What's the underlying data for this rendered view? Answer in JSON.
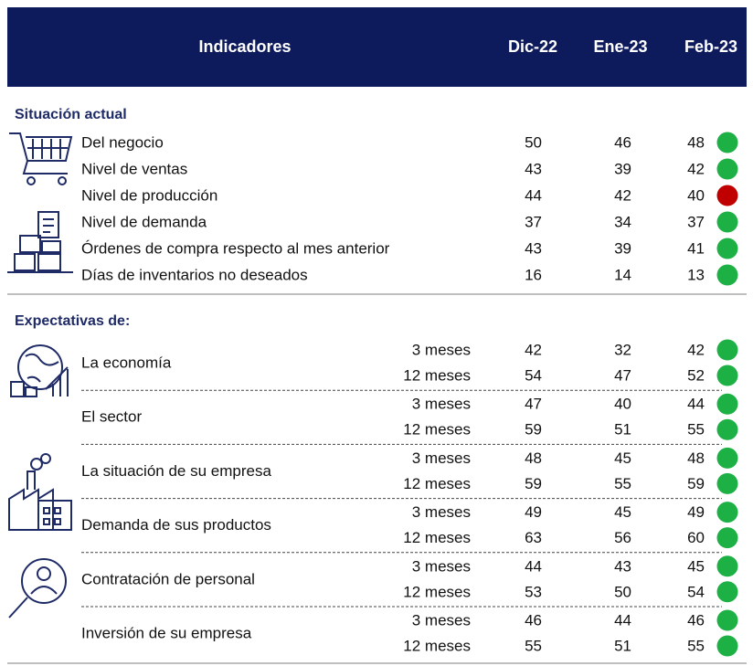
{
  "header": {
    "title": "Indicadores",
    "columns": [
      "Dic-22",
      "Ene-23",
      "Feb-23"
    ]
  },
  "current": {
    "title": "Situación actual",
    "rows": [
      {
        "label": "Del negocio",
        "values": [
          50,
          46,
          48
        ],
        "color": "#1db044"
      },
      {
        "label": "Nivel de ventas",
        "values": [
          43,
          39,
          42
        ],
        "color": "#1db044"
      },
      {
        "label": "Nivel de producción",
        "values": [
          44,
          42,
          40
        ],
        "color": "#c00000"
      },
      {
        "label": "Nivel de demanda",
        "values": [
          37,
          34,
          37
        ],
        "color": "#1db044"
      },
      {
        "label": "Órdenes de compra respecto al mes anterior",
        "values": [
          43,
          39,
          41
        ],
        "color": "#1db044"
      },
      {
        "label": "Días de inventarios no deseados",
        "values": [
          16,
          14,
          13
        ],
        "color": "#1db044"
      }
    ]
  },
  "expectations": {
    "title": "Expectativas de:",
    "groups": [
      {
        "label": "La economía",
        "rows": [
          {
            "horizon": "3 meses",
            "values": [
              42,
              32,
              42
            ],
            "color": "#1db044"
          },
          {
            "horizon": "12 meses",
            "values": [
              54,
              47,
              52
            ],
            "color": "#1db044"
          }
        ]
      },
      {
        "label": "El sector",
        "rows": [
          {
            "horizon": "3 meses",
            "values": [
              47,
              40,
              44
            ],
            "color": "#1db044"
          },
          {
            "horizon": "12 meses",
            "values": [
              59,
              51,
              55
            ],
            "color": "#1db044"
          }
        ]
      },
      {
        "label": "La situación de su empresa",
        "rows": [
          {
            "horizon": "3 meses",
            "values": [
              48,
              45,
              48
            ],
            "color": "#1db044"
          },
          {
            "horizon": "12 meses",
            "values": [
              59,
              55,
              59
            ],
            "color": "#1db044"
          }
        ]
      },
      {
        "label": "Demanda de sus productos",
        "rows": [
          {
            "horizon": "3 meses",
            "values": [
              49,
              45,
              49
            ],
            "color": "#1db044"
          },
          {
            "horizon": "12 meses",
            "values": [
              63,
              56,
              60
            ],
            "color": "#1db044"
          }
        ]
      },
      {
        "label": "Contratación de personal",
        "rows": [
          {
            "horizon": "3 meses",
            "values": [
              44,
              43,
              45
            ],
            "color": "#1db044"
          },
          {
            "horizon": "12 meses",
            "values": [
              53,
              50,
              54
            ],
            "color": "#1db044"
          }
        ]
      },
      {
        "label": "Inversión de su empresa",
        "rows": [
          {
            "horizon": "3 meses",
            "values": [
              46,
              44,
              46
            ],
            "color": "#1db044"
          },
          {
            "horizon": "12 meses",
            "values": [
              55,
              51,
              55
            ],
            "color": "#1db044"
          }
        ]
      }
    ]
  }
}
